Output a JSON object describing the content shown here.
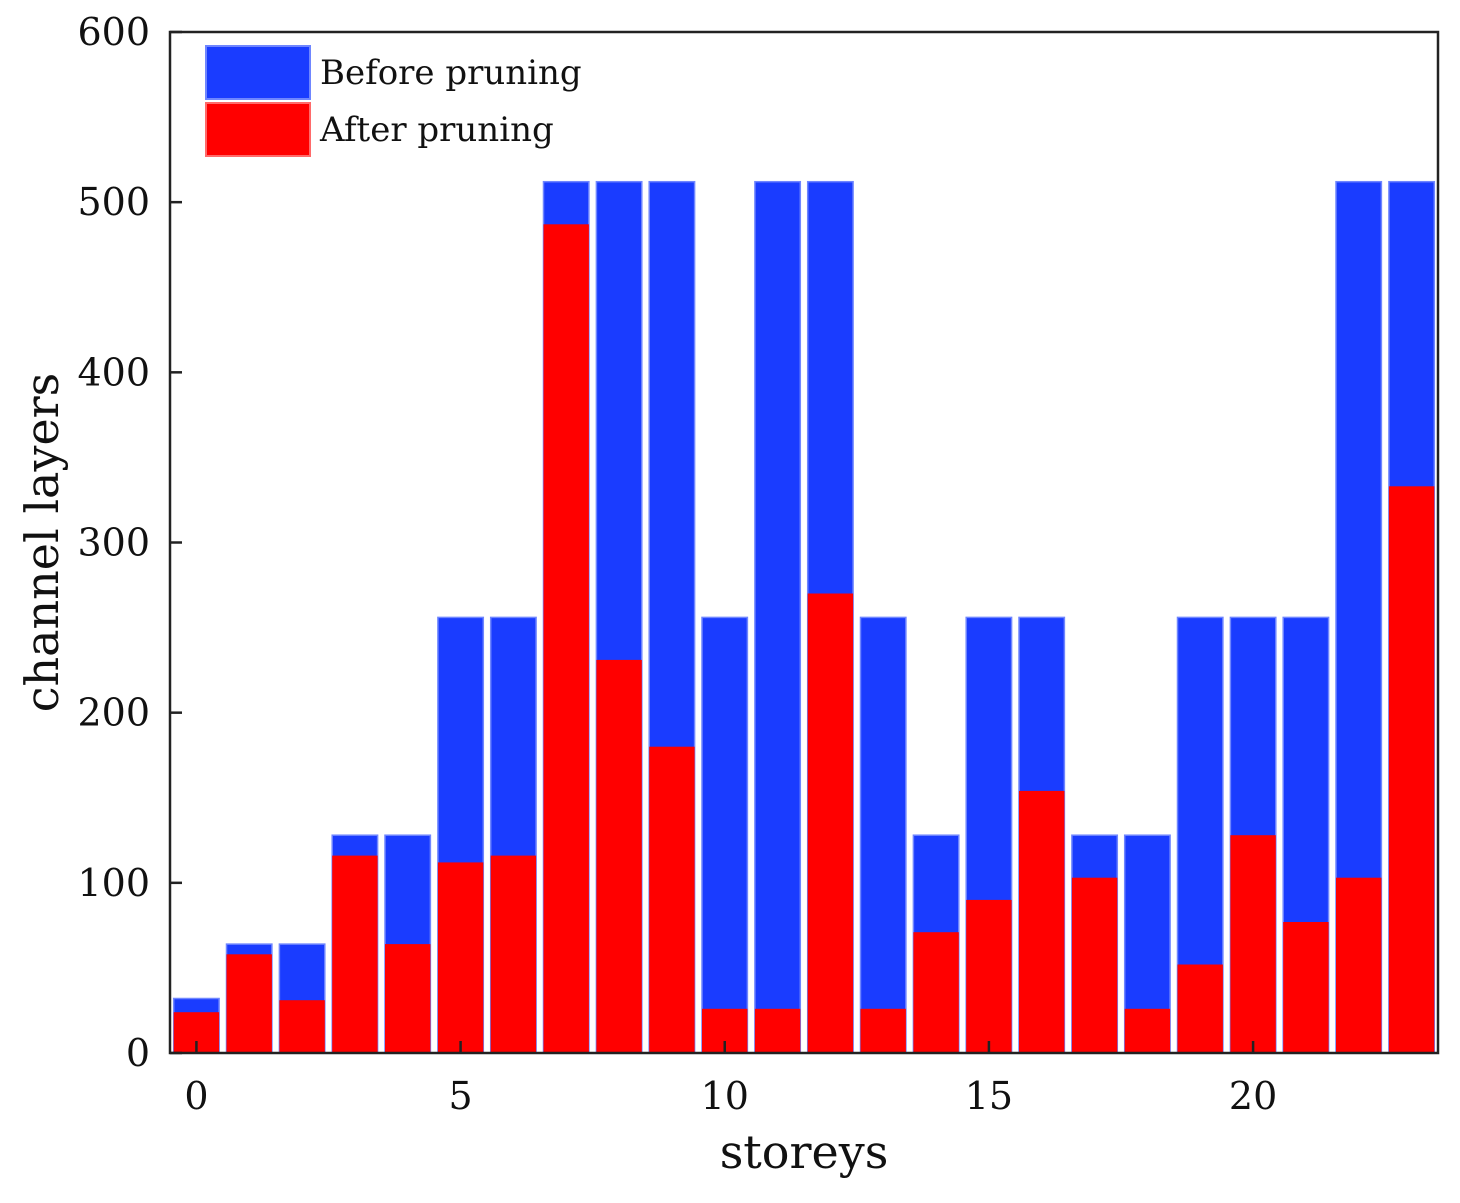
{
  "chart_data": {
    "type": "bar",
    "title": "",
    "xlabel": "storeys",
    "ylabel": "channel layers",
    "xlim": [
      -0.5,
      23.5
    ],
    "ylim": [
      0,
      600
    ],
    "xticks": [
      0,
      5,
      10,
      15,
      20
    ],
    "yticks": [
      0,
      100,
      200,
      300,
      400,
      500,
      600
    ],
    "grid": false,
    "legend_position": "top-left",
    "categories": [
      0,
      1,
      2,
      3,
      4,
      5,
      6,
      7,
      8,
      9,
      10,
      11,
      12,
      13,
      14,
      15,
      16,
      17,
      18,
      19,
      20,
      21,
      22,
      23
    ],
    "series": [
      {
        "name": "Before pruning",
        "color": "#1a3cff",
        "values": [
          32,
          64,
          64,
          128,
          128,
          256,
          256,
          512,
          512,
          512,
          256,
          512,
          512,
          256,
          128,
          256,
          256,
          128,
          128,
          256,
          256,
          256,
          512,
          512
        ]
      },
      {
        "name": "After pruning",
        "color": "#ff0000",
        "values": [
          24,
          58,
          31,
          116,
          64,
          112,
          116,
          487,
          231,
          180,
          26,
          26,
          270,
          26,
          71,
          90,
          154,
          103,
          26,
          52,
          128,
          77,
          103,
          333
        ]
      }
    ]
  }
}
